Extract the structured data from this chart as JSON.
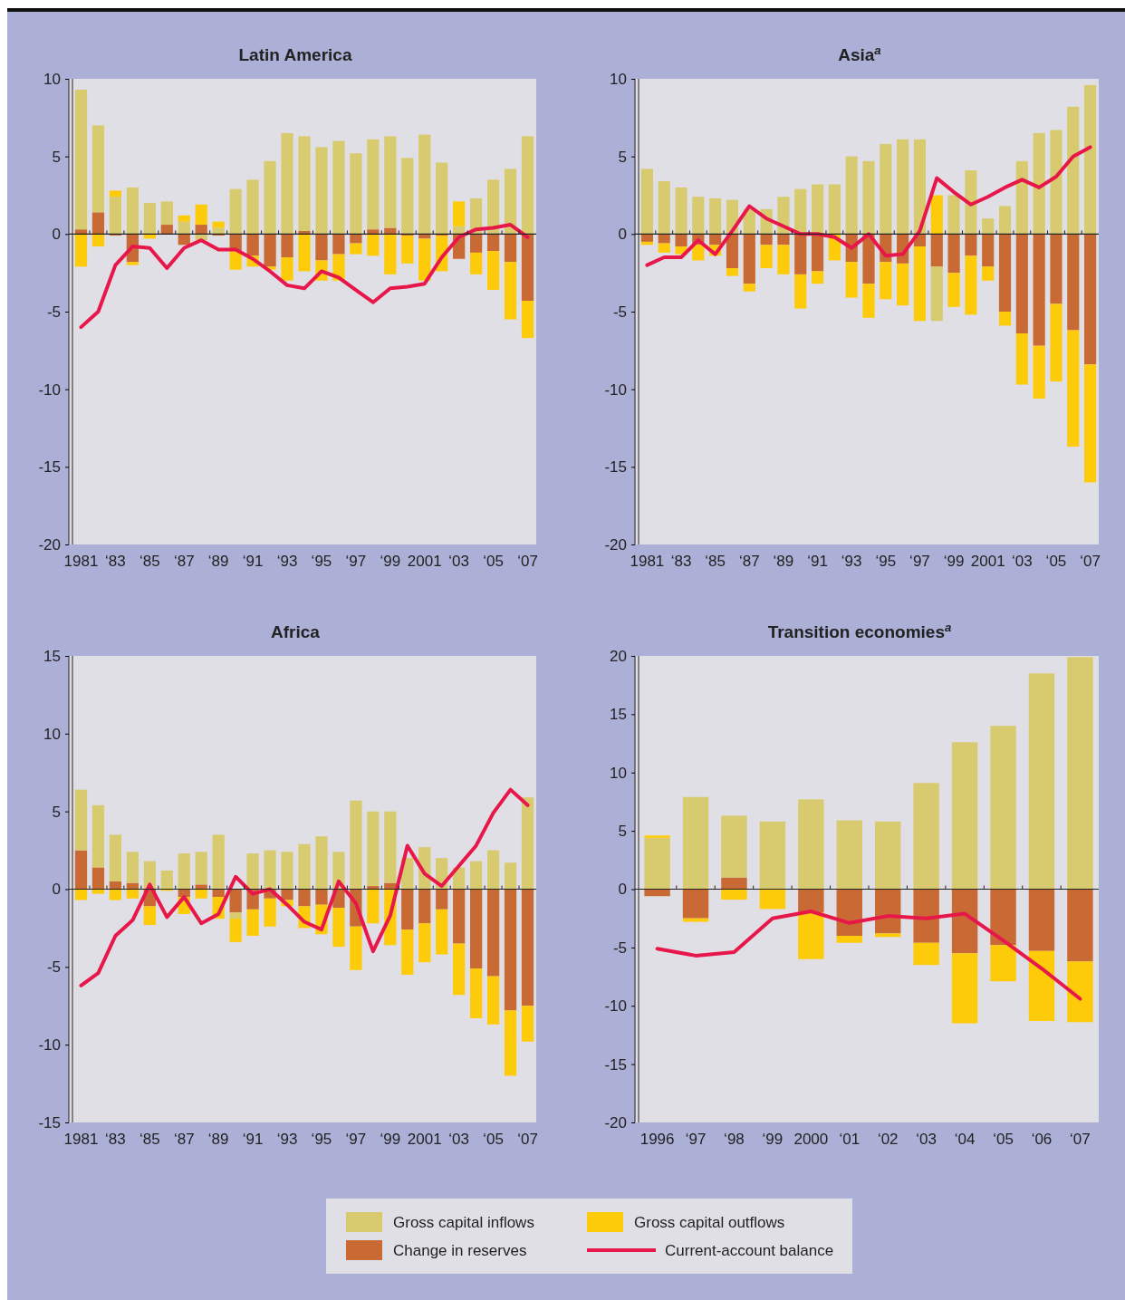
{
  "chart_data": [
    {
      "type": "bar",
      "title": "Latin America",
      "stacked": true,
      "legend": "bottom",
      "categories": [
        "1981",
        null,
        "‘83",
        null,
        "‘85",
        null,
        "‘87",
        null,
        "‘89",
        null,
        "‘91",
        null,
        "‘93",
        null,
        "‘95",
        null,
        "‘97",
        null,
        "‘99",
        null,
        "2001",
        null,
        "‘03",
        null,
        "‘05",
        null,
        "‘07"
      ],
      "ylim": [
        -20,
        10
      ],
      "yticks": [
        -20,
        -15,
        -10,
        -5,
        0,
        5,
        10
      ],
      "marker": "none",
      "line_style": "solid",
      "series": [
        {
          "name": "Change in reserves",
          "color": "#c96a35",
          "values": [
            0.3,
            1.4,
            -0.1,
            -1.8,
            0,
            0.6,
            -0.7,
            0.6,
            -0.1,
            -1.1,
            -1.4,
            -2.1,
            -1.5,
            0.2,
            -1.7,
            -1.3,
            -0.6,
            0.3,
            0.4,
            -0.1,
            -0.3,
            -0.1,
            -1.6,
            -1.2,
            -1.1,
            -1.8,
            -4.3
          ]
        },
        {
          "name": "Gross capital inflows",
          "color": "#d8cb6f",
          "values": [
            9.0,
            5.6,
            2.4,
            3.0,
            2.0,
            1.5,
            0.8,
            -0.4,
            0.4,
            2.9,
            3.5,
            4.7,
            6.5,
            6.1,
            5.6,
            6.0,
            5.2,
            5.8,
            5.9,
            4.9,
            6.4,
            4.6,
            0.5,
            2.3,
            3.5,
            4.2,
            6.3
          ]
        },
        {
          "name": "Gross capital outflows",
          "color": "#fecb0a",
          "values": [
            -2.1,
            -0.8,
            0.4,
            -0.2,
            -0.3,
            0,
            0.4,
            1.3,
            0.4,
            -1.2,
            -0.7,
            -0.2,
            -1.5,
            -2.4,
            -1.3,
            -1.7,
            -0.7,
            -1.4,
            -2.6,
            -1.8,
            -2.7,
            -2.3,
            1.6,
            -1.4,
            -2.5,
            -3.7,
            -2.4
          ]
        },
        {
          "name": "Current-account balance",
          "type": "line",
          "color": "#e8174a",
          "values": [
            -6.0,
            -5.0,
            -2.0,
            -0.8,
            -0.9,
            -2.2,
            -0.9,
            -0.4,
            -1.0,
            -1.0,
            -1.6,
            -2.4,
            -3.3,
            -3.5,
            -2.4,
            -2.8,
            -3.6,
            -4.4,
            -3.5,
            -3.4,
            -3.2,
            -1.5,
            -0.2,
            0.3,
            0.4,
            0.6,
            -0.2
          ]
        }
      ]
    },
    {
      "type": "bar",
      "title": "Asia$^{a}$",
      "stacked": true,
      "categories": [
        "1981",
        null,
        "‘83",
        null,
        "‘85",
        null,
        "‘87",
        null,
        "‘89",
        null,
        "‘91",
        null,
        "‘93",
        null,
        "‘95",
        null,
        "‘97",
        null,
        "‘99",
        null,
        "2001",
        null,
        "‘03",
        null,
        "‘05",
        null,
        "‘07"
      ],
      "ylim": [
        -20,
        10
      ],
      "yticks": [
        -20,
        -15,
        -10,
        -5,
        0,
        5,
        10
      ],
      "marker": "none",
      "line_style": "solid",
      "series": [
        {
          "color": "#c96a35",
          "values": [
            -0.5,
            -0.6,
            -0.8,
            -0.7,
            -0.7,
            -2.2,
            -3.2,
            -0.7,
            -0.7,
            -2.6,
            -2.4,
            null,
            -1.8,
            -3.2,
            -1.8,
            -1.9,
            -0.8,
            -2.1,
            -2.5,
            -1.4,
            -2.1,
            -5.0,
            -6.4,
            -7.2,
            -4.5,
            -6.2,
            -8.4
          ]
        },
        {
          "color": "#d8cb6f",
          "values": [
            4.2,
            3.4,
            3.0,
            2.4,
            2.3,
            2.2,
            1.6,
            1.6,
            2.4,
            2.9,
            3.2,
            3.2,
            5.0,
            4.7,
            5.8,
            6.1,
            6.1,
            -3.5,
            2.5,
            4.1,
            1.0,
            1.8,
            4.7,
            6.5,
            6.7,
            8.2,
            9.6
          ]
        },
        {
          "color": "#fecb0a",
          "values": [
            -0.2,
            -0.6,
            -0.5,
            -1.0,
            -0.7,
            -0.5,
            -0.5,
            -1.5,
            -1.9,
            -2.2,
            -0.8,
            -1.7,
            -2.3,
            -2.2,
            -2.4,
            -2.7,
            -4.8,
            2.5,
            -2.2,
            -3.8,
            -0.9,
            -0.9,
            -3.3,
            -3.4,
            -5.0,
            -7.5,
            -7.6
          ]
        },
        {
          "type": "line",
          "color": "#e8174a",
          "values": [
            -2.0,
            -1.5,
            -1.5,
            -0.4,
            -1.3,
            0.2,
            1.8,
            1.0,
            0.5,
            0.0,
            0.0,
            -0.2,
            -0.9,
            0.0,
            -1.4,
            -1.3,
            0.2,
            3.6,
            2.7,
            1.9,
            2.4,
            3.0,
            3.5,
            3.0,
            3.7,
            5.0,
            5.6
          ]
        }
      ]
    },
    {
      "type": "bar",
      "title": "Africa",
      "stacked": true,
      "categories": [
        "1981",
        null,
        "‘83",
        null,
        "‘85",
        null,
        "‘87",
        null,
        "‘89",
        null,
        "‘91",
        null,
        "‘93",
        null,
        "‘95",
        null,
        "‘97",
        null,
        "‘99",
        null,
        "2001",
        null,
        "‘03",
        null,
        "‘05",
        null,
        "‘07"
      ],
      "ylim": [
        -15,
        15
      ],
      "yticks": [
        -15,
        -10,
        -5,
        0,
        5,
        10,
        15
      ],
      "marker": "none",
      "line_style": "solid",
      "series": [
        {
          "color": "#c96a35",
          "values": [
            2.5,
            1.4,
            0.5,
            0.4,
            -1.1,
            0,
            -0.5,
            0.3,
            -0.5,
            -1.5,
            -1.3,
            -0.6,
            -0.7,
            -1.1,
            -1.0,
            -1.2,
            -2.4,
            0.2,
            0.4,
            -2.6,
            -2.2,
            -1.3,
            -3.5,
            -5.1,
            -5.6,
            -7.8,
            -7.5
          ]
        },
        {
          "color": "#d8cb6f",
          "values": [
            3.9,
            4.0,
            3.0,
            2.0,
            1.8,
            1.2,
            2.3,
            2.1,
            3.5,
            -0.4,
            2.3,
            2.5,
            2.4,
            2.9,
            3.4,
            2.4,
            5.7,
            4.8,
            4.6,
            2.0,
            2.7,
            2.0,
            1.4,
            1.8,
            2.5,
            1.7,
            5.9
          ]
        },
        {
          "color": "#fecb0a",
          "values": [
            -0.7,
            -0.3,
            -0.7,
            -0.6,
            -1.2,
            -0.1,
            -1.1,
            -0.6,
            -1.4,
            -1.5,
            -1.7,
            -1.8,
            -0.4,
            -1.4,
            -1.9,
            -2.5,
            -2.8,
            -2.2,
            -3.6,
            -2.9,
            -2.5,
            -2.9,
            -3.3,
            -3.2,
            -3.1,
            -4.2,
            -2.3
          ]
        },
        {
          "type": "line",
          "color": "#e8174a",
          "values": [
            -6.2,
            -5.4,
            -3.0,
            -2.0,
            0.3,
            -1.8,
            -0.5,
            -2.2,
            -1.6,
            0.8,
            -0.3,
            0.0,
            -1.0,
            -2.1,
            -2.6,
            0.5,
            -0.9,
            -4.0,
            -1.7,
            2.8,
            1.0,
            0.2,
            1.5,
            2.8,
            4.9,
            6.4,
            5.4
          ]
        }
      ]
    },
    {
      "type": "bar",
      "title": "Transition economies$^{a}$",
      "stacked": true,
      "categories": [
        "1996",
        "‘97",
        "‘98",
        "‘99",
        "2000",
        "‘01",
        "‘02",
        "‘03",
        "‘04",
        "‘05",
        "‘06",
        "‘07"
      ],
      "ylim": [
        -20,
        20
      ],
      "yticks": [
        -20,
        -15,
        -10,
        -5,
        0,
        5,
        10,
        15,
        20
      ],
      "marker": "none",
      "line_style": "solid",
      "series": [
        {
          "color": "#c96a35",
          "values": [
            -0.6,
            -2.5,
            1.0,
            0,
            -2.0,
            -4.0,
            -3.8,
            -4.6,
            -5.5,
            -4.8,
            -5.3,
            -6.2
          ]
        },
        {
          "color": "#d8cb6f",
          "values": [
            4.4,
            7.9,
            5.3,
            5.8,
            7.7,
            5.9,
            5.8,
            9.1,
            12.6,
            14.0,
            18.5,
            19.9
          ]
        },
        {
          "color": "#fecb0a",
          "values": [
            0.2,
            -0.3,
            -0.9,
            -1.7,
            -4.0,
            -0.6,
            -0.3,
            -1.9,
            -6.0,
            -3.1,
            -6.0,
            -5.2
          ]
        },
        {
          "type": "line",
          "color": "#e8174a",
          "values": [
            -5.1,
            -5.7,
            -5.4,
            -2.5,
            -1.9,
            -2.9,
            -2.3,
            -2.5,
            -2.1,
            -4.4,
            -6.8,
            -9.4
          ]
        }
      ]
    }
  ]
}
